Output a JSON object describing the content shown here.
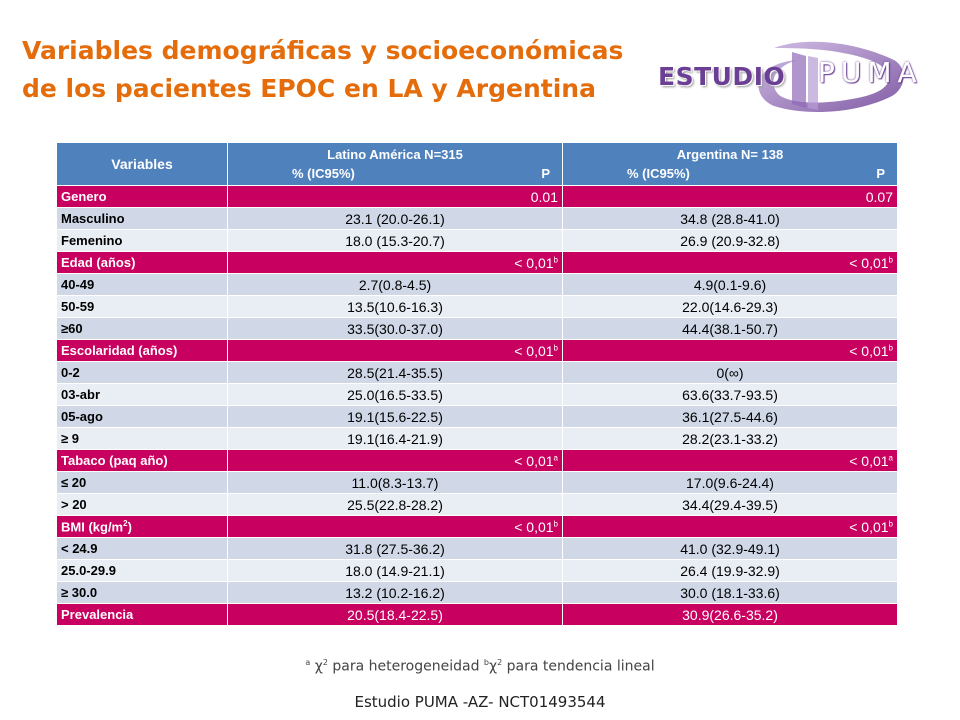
{
  "title": "Variables demográficas y socioeconómicas de los pacientes EPOC en LA y  Argentina",
  "logo": {
    "word1": "ESTUDIO",
    "word2": "PUMA"
  },
  "table": {
    "header": {
      "variables": "Variables",
      "la": "Latino América N=315",
      "arg": "Argentina N= 138",
      "pct": "% (IC95%)",
      "p": "P"
    },
    "rows": [
      {
        "type": "sec",
        "label": "Genero",
        "la_p": "0.01",
        "arg_p": "0.07"
      },
      {
        "type": "row",
        "label": "Masculino",
        "la": "23.1  (20.0-26.1)",
        "arg": "34.8  (28.8-41.0)"
      },
      {
        "type": "row",
        "label": "Femenino",
        "la": "18.0 (15.3-20.7)",
        "arg": "26.9 (20.9-32.8)"
      },
      {
        "type": "sec",
        "label": "Edad (años)",
        "la_p": "< 0,01",
        "la_sup": "b",
        "arg_p": "< 0,01",
        "arg_sup": "b"
      },
      {
        "type": "row",
        "label": "40-49",
        "la": "2.7(0.8-4.5)",
        "arg": "4.9(0.1-9.6)"
      },
      {
        "type": "row",
        "label": "50-59",
        "la": "13.5(10.6-16.3)",
        "arg": "22.0(14.6-29.3)"
      },
      {
        "type": "row",
        "label": "≥60",
        "la": "33.5(30.0-37.0)",
        "arg": "44.4(38.1-50.7)"
      },
      {
        "type": "sec",
        "label": "Escolaridad (años)",
        "la_p": "< 0,01",
        "la_sup": "b",
        "arg_p": "< 0,01",
        "arg_sup": "b"
      },
      {
        "type": "row",
        "label": "0-2",
        "la": "28.5(21.4-35.5)",
        "arg": "0(∞)"
      },
      {
        "type": "row",
        "label": "03-abr",
        "la": "25.0(16.5-33.5)",
        "arg": "63.6(33.7-93.5)"
      },
      {
        "type": "row",
        "label": "05-ago",
        "la": "19.1(15.6-22.5)",
        "arg": "36.1(27.5-44.6)"
      },
      {
        "type": "row",
        "label": "≥ 9",
        "la": "19.1(16.4-21.9)",
        "arg": "28.2(23.1-33.2)"
      },
      {
        "type": "sec",
        "label": "Tabaco (paq año)",
        "la_p": "< 0,01",
        "la_sup": "a",
        "arg_p": "< 0,01",
        "arg_sup": "a"
      },
      {
        "type": "row",
        "label": "≤ 20",
        "la": "11.0(8.3-13.7)",
        "arg": "17.0(9.6-24.4)"
      },
      {
        "type": "row",
        "label": "> 20",
        "la": "25.5(22.8-28.2)",
        "arg": "34.4(29.4-39.5)"
      },
      {
        "type": "sec",
        "label": "BMI (kg/m",
        "label_sup": "2",
        "label_end": ")",
        "la_p": "< 0,01",
        "la_sup": "b",
        "arg_p": "< 0,01",
        "arg_sup": "b"
      },
      {
        "type": "row",
        "label": "< 24.9",
        "la": "31.8 (27.5-36.2)",
        "arg": "41.0 (32.9-49.1)"
      },
      {
        "type": "row",
        "label": "25.0-29.9",
        "la": "18.0 (14.9-21.1)",
        "arg": "26.4 (19.9-32.9)"
      },
      {
        "type": "row",
        "label": "≥ 30.0",
        "la": "13.2 (10.2-16.2)",
        "arg": "30.0 (18.1-33.6)"
      },
      {
        "type": "prev",
        "label": "Prevalencia",
        "la": "20.5(18.4-22.5)",
        "arg": "30.9(26.6-35.2)"
      }
    ]
  },
  "footnote": {
    "a": "a",
    "a_text": " χ",
    "a_sq": "2",
    "a_rest": " para heterogeneidad ",
    "b": "b",
    "b_text": "χ",
    "b_sq": "2",
    "b_rest": " para tendencia lineal"
  },
  "source": "Estudio PUMA -AZ- NCT01493544",
  "colors": {
    "title": "#e46c0a",
    "header": "#4f81bd",
    "section": "#c8005f",
    "row_odd": "#d0d8e8",
    "row_even": "#e9edf4",
    "logo": "#6b3f95"
  }
}
